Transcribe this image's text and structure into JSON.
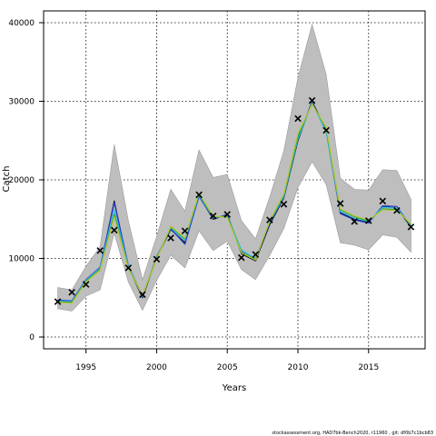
{
  "chart_data": {
    "type": "line",
    "xlabel": "Years",
    "ylabel": "Catch",
    "xlim": [
      1992.0,
      2019.0
    ],
    "ylim": [
      -1500,
      41500
    ],
    "x_ticks": [
      1995,
      2000,
      2005,
      2010,
      2015
    ],
    "y_ticks": [
      0,
      10000,
      20000,
      30000,
      40000
    ],
    "grid": true,
    "grid_style": "dotted",
    "colors": {
      "band": "#bebebe",
      "band_edge": "#9a9a9a",
      "line_black": "#000000",
      "line_blue": "#2a3bd6",
      "line_cyan": "#2ec4e8",
      "line_green": "#2e9e3a",
      "line_olive": "#b8c830",
      "observed_marker": "#000000"
    },
    "years": [
      1993,
      1994,
      1995,
      1996,
      1997,
      1998,
      1999,
      2000,
      2001,
      2002,
      2003,
      2004,
      2005,
      2006,
      2007,
      2008,
      2009,
      2010,
      2011,
      2012,
      2013,
      2014,
      2015,
      2016,
      2017,
      2018
    ],
    "band_upper": [
      6300,
      6000,
      9000,
      11500,
      24500,
      14800,
      7300,
      12800,
      18800,
      16000,
      23800,
      20300,
      20700,
      14800,
      12500,
      17800,
      23700,
      33000,
      39800,
      33400,
      20200,
      18800,
      18700,
      21300,
      21200,
      17500
    ],
    "band_lower": [
      3600,
      3300,
      5200,
      6000,
      13200,
      7000,
      3400,
      7200,
      10400,
      8800,
      13500,
      11000,
      12200,
      8600,
      7300,
      10400,
      13800,
      19000,
      22300,
      19400,
      12000,
      11700,
      11100,
      13000,
      12700,
      10800
    ],
    "series": [
      {
        "name": "",
        "color_key": "line_black",
        "values": [
          4600,
          4500,
          7100,
          8700,
          17300,
          8900,
          5000,
          10100,
          13700,
          12000,
          18000,
          15000,
          15600,
          10600,
          9700,
          14300,
          17700,
          25000,
          30000,
          26300,
          15800,
          15000,
          14600,
          16600,
          16400,
          14000
        ]
      },
      {
        "name": "",
        "color_key": "line_blue",
        "values": [
          4700,
          4600,
          7300,
          8900,
          17100,
          9100,
          5100,
          10200,
          13800,
          11800,
          17900,
          15100,
          15500,
          10900,
          9800,
          14500,
          17800,
          25400,
          29900,
          26200,
          15700,
          14900,
          14500,
          16700,
          16600,
          14100
        ]
      },
      {
        "name": "",
        "color_key": "line_cyan",
        "values": [
          4600,
          4500,
          7200,
          8800,
          16200,
          9000,
          5200,
          10100,
          13900,
          12300,
          18100,
          15200,
          15400,
          11100,
          10000,
          14600,
          17900,
          25200,
          29800,
          26100,
          16000,
          15100,
          14700,
          16500,
          16400,
          14200
        ]
      },
      {
        "name": "",
        "color_key": "line_green",
        "values": [
          4500,
          4400,
          7100,
          8600,
          15600,
          8800,
          5300,
          10000,
          14000,
          12500,
          18200,
          15300,
          15300,
          10800,
          9900,
          14700,
          18100,
          25600,
          29700,
          26500,
          16200,
          15300,
          14800,
          16300,
          16200,
          14300
        ]
      },
      {
        "name": "",
        "color_key": "line_olive",
        "values": [
          4400,
          4300,
          7000,
          8500,
          15300,
          8700,
          5300,
          9900,
          14100,
          12600,
          18300,
          15400,
          15200,
          10700,
          9800,
          14800,
          18200,
          25900,
          29600,
          26700,
          16300,
          15400,
          14900,
          16200,
          16100,
          14400
        ]
      }
    ],
    "observed": [
      {
        "x": 1993,
        "y": 4500
      },
      {
        "x": 1994,
        "y": 5700
      },
      {
        "x": 1995,
        "y": 6700
      },
      {
        "x": 1996,
        "y": 11000
      },
      {
        "x": 1997,
        "y": 13600
      },
      {
        "x": 1998,
        "y": 8800
      },
      {
        "x": 1999,
        "y": 5400
      },
      {
        "x": 2000,
        "y": 9900
      },
      {
        "x": 2001,
        "y": 12600
      },
      {
        "x": 2002,
        "y": 13500
      },
      {
        "x": 2003,
        "y": 18100
      },
      {
        "x": 2004,
        "y": 15400
      },
      {
        "x": 2005,
        "y": 15600
      },
      {
        "x": 2006,
        "y": 10100
      },
      {
        "x": 2007,
        "y": 10500
      },
      {
        "x": 2008,
        "y": 14900
      },
      {
        "x": 2009,
        "y": 16900
      },
      {
        "x": 2010,
        "y": 27800
      },
      {
        "x": 2011,
        "y": 30100
      },
      {
        "x": 2012,
        "y": 26300
      },
      {
        "x": 2013,
        "y": 17000
      },
      {
        "x": 2014,
        "y": 14700
      },
      {
        "x": 2015,
        "y": 14800
      },
      {
        "x": 2016,
        "y": 17300
      },
      {
        "x": 2017,
        "y": 16100
      },
      {
        "x": 2018,
        "y": 14000
      }
    ]
  },
  "footer": "stockassessment.org, HAD7bk-Bench2020, r11960 , git: df0b7c1bcb83"
}
